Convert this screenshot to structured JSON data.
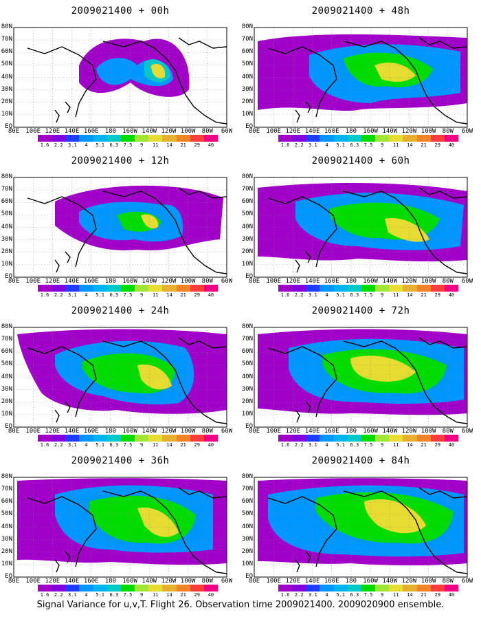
{
  "panels": [
    {
      "title": "2009021400 + 00h"
    },
    {
      "title": "2009021400 + 48h"
    },
    {
      "title": "2009021400 + 12h"
    },
    {
      "title": "2009021400 + 60h"
    },
    {
      "title": "2009021400 + 24h"
    },
    {
      "title": "2009021400 + 72h"
    },
    {
      "title": "2009021400 + 36h"
    },
    {
      "title": "2009021400 + 84h"
    }
  ],
  "lat_labels": [
    "80N",
    "70N",
    "60N",
    "50N",
    "40N",
    "30N",
    "20N",
    "10N",
    "EQ"
  ],
  "lon_labels": [
    "80E",
    "100E",
    "120E",
    "140E",
    "160E",
    "180",
    "160W",
    "140W",
    "120W",
    "100W",
    "80W",
    "60W"
  ],
  "colorbar": {
    "labels": [
      "1.6",
      "2.2",
      "3.1",
      "4",
      "5.1",
      "6.3",
      "7.5",
      "9",
      "11",
      "14",
      "21",
      "29",
      "40"
    ],
    "colors": [
      "#a000c8",
      "#8200dc",
      "#1e3cff",
      "#0096ff",
      "#00b4f0",
      "#00c8c8",
      "#00dc00",
      "#a0e632",
      "#e6dc32",
      "#e6af2d",
      "#f08228",
      "#fa3c3c",
      "#f00082"
    ]
  },
  "caption": "Signal Variance for u,v,T. Flight 26. Observation time 2009021400. 2009020900 ensemble."
}
